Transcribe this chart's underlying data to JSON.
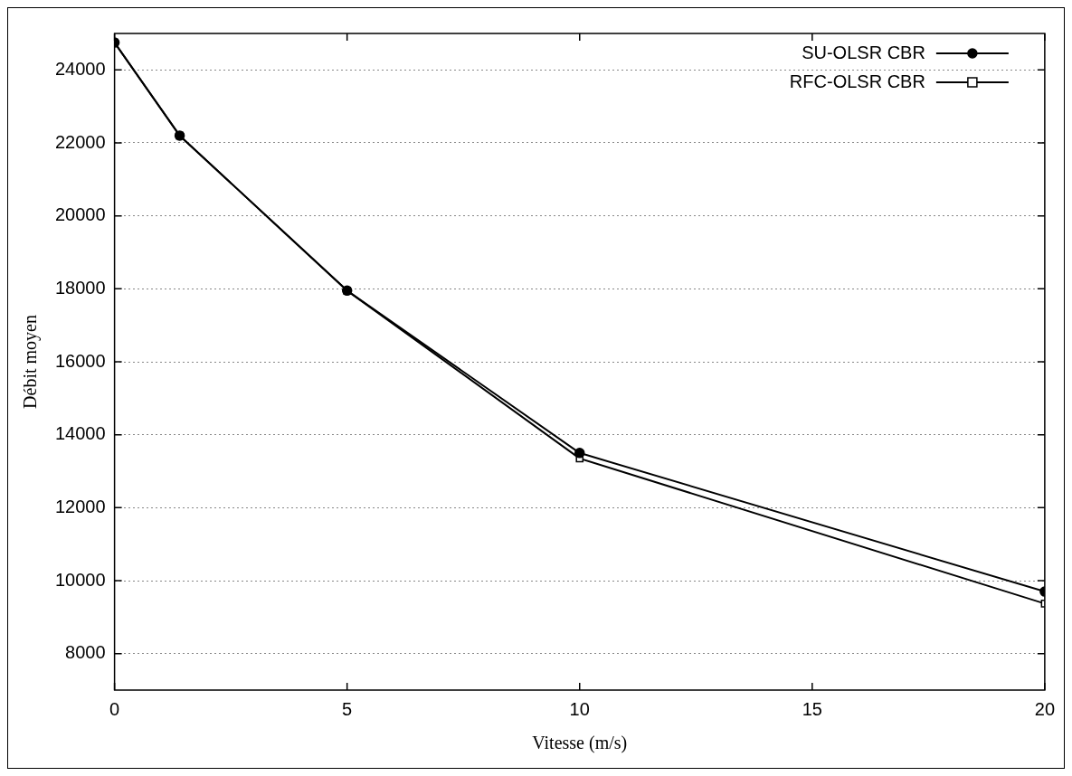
{
  "chart_data": {
    "type": "line",
    "xlabel": "Vitesse (m/s)",
    "ylabel": "Débit moyen",
    "xlim": [
      0,
      20
    ],
    "xticks": [
      0,
      5,
      10,
      15,
      20
    ],
    "ylim": [
      7000,
      25000
    ],
    "yticks": [
      8000,
      10000,
      12000,
      14000,
      16000,
      18000,
      20000,
      22000,
      24000
    ],
    "grid": "y",
    "legend": "top right",
    "series": [
      {
        "name": "SU-OLSR CBR",
        "color": "#000000",
        "marker": "circle",
        "x": [
          0,
          1.4,
          5,
          10,
          20
        ],
        "values": [
          24750,
          22200,
          17950,
          13500,
          9700
        ]
      },
      {
        "name": "RFC-OLSR CBR",
        "color": "#000000",
        "marker": "square",
        "x": [
          0,
          1.4,
          5,
          10,
          20
        ],
        "values": [
          24750,
          22200,
          17950,
          13350,
          9370
        ]
      }
    ]
  }
}
